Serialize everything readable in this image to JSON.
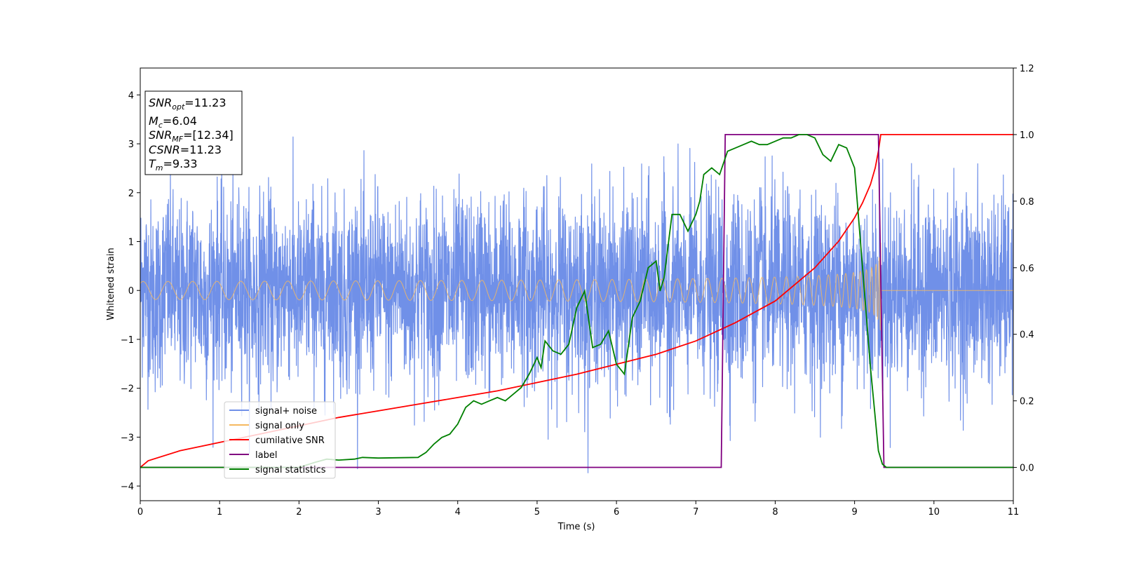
{
  "chart_data": {
    "type": "line",
    "xlabel": "Time (s)",
    "ylabel": "Whitened strain",
    "xlim": [
      0,
      11
    ],
    "ylim_left": [
      -4.3,
      4.55
    ],
    "ylim_right": [
      -0.1,
      1.2
    ],
    "x_ticks": [
      0,
      1,
      2,
      3,
      4,
      5,
      6,
      7,
      8,
      9,
      10,
      11
    ],
    "y_ticks_left": [
      -4,
      -3,
      -2,
      -1,
      0,
      1,
      2,
      3,
      4
    ],
    "y_ticks_right": [
      0.0,
      0.2,
      0.4,
      0.6,
      0.8,
      1.0,
      1.2
    ],
    "grid": false,
    "legend_position": "lower-left",
    "info_box": {
      "snr_opt": {
        "main": "SNR",
        "sub": "opt",
        "value": "=11.23"
      },
      "mc": {
        "main": "M",
        "sub": "c",
        "value": "=6.04"
      },
      "snr_mf": {
        "main": "SNR",
        "sub": "MF",
        "value": "=[12.34]"
      },
      "csnr": {
        "main": "CSNR",
        "value": "=11.23"
      },
      "tm": {
        "main": "T",
        "sub": "m",
        "value": "=9.33"
      }
    },
    "series": [
      {
        "name": "signal+ noise",
        "color": "#7090e8",
        "axis": "left",
        "kind": "noise",
        "std_dev": 0.95,
        "range": [
          -3.85,
          3.65
        ]
      },
      {
        "name": "signal only",
        "color": "#f5b860",
        "axis": "left",
        "kind": "chirp",
        "merger_time": 9.33,
        "peak_amplitude": 1.0
      },
      {
        "name": "cumilative SNR",
        "color": "#ff0000",
        "axis": "right",
        "x": [
          0,
          0.1,
          0.5,
          1,
          1.5,
          2,
          2.5,
          3,
          3.5,
          4,
          4.5,
          5,
          5.5,
          6,
          6.5,
          7,
          7.5,
          8,
          8.5,
          8.8,
          9,
          9.1,
          9.2,
          9.26,
          9.3,
          9.33,
          11
        ],
        "y": [
          0.0,
          0.02,
          0.05,
          0.075,
          0.1,
          0.125,
          0.15,
          0.17,
          0.19,
          0.21,
          0.23,
          0.255,
          0.28,
          0.31,
          0.34,
          0.38,
          0.435,
          0.5,
          0.6,
          0.68,
          0.75,
          0.795,
          0.85,
          0.9,
          0.95,
          1.0,
          1.0
        ]
      },
      {
        "name": "label",
        "color": "#800080",
        "axis": "right",
        "x": [
          0,
          7.32,
          7.37,
          9.3,
          9.37,
          11
        ],
        "y": [
          0,
          0,
          1,
          1,
          0,
          0
        ]
      },
      {
        "name": "signal statistics",
        "color": "#008000",
        "axis": "right",
        "x": [
          0,
          2.0,
          2.2,
          2.35,
          2.5,
          2.7,
          2.8,
          3.0,
          3.5,
          3.6,
          3.7,
          3.8,
          3.9,
          4.0,
          4.1,
          4.2,
          4.3,
          4.4,
          4.5,
          4.6,
          4.7,
          4.8,
          4.9,
          5.0,
          5.05,
          5.1,
          5.2,
          5.3,
          5.4,
          5.5,
          5.6,
          5.7,
          5.8,
          5.9,
          6.0,
          6.1,
          6.2,
          6.3,
          6.4,
          6.5,
          6.55,
          6.6,
          6.7,
          6.8,
          6.9,
          7.0,
          7.05,
          7.1,
          7.2,
          7.3,
          7.4,
          7.5,
          7.6,
          7.7,
          7.8,
          7.9,
          8.0,
          8.1,
          8.2,
          8.3,
          8.4,
          8.5,
          8.6,
          8.7,
          8.8,
          8.9,
          9.0,
          9.1,
          9.2,
          9.3,
          9.35,
          9.4,
          11
        ],
        "y": [
          0.0,
          0.0,
          0.015,
          0.025,
          0.022,
          0.025,
          0.03,
          0.028,
          0.03,
          0.045,
          0.07,
          0.09,
          0.1,
          0.13,
          0.18,
          0.2,
          0.19,
          0.2,
          0.21,
          0.2,
          0.22,
          0.24,
          0.28,
          0.33,
          0.3,
          0.38,
          0.35,
          0.34,
          0.37,
          0.48,
          0.53,
          0.36,
          0.37,
          0.41,
          0.31,
          0.28,
          0.45,
          0.5,
          0.6,
          0.62,
          0.53,
          0.57,
          0.76,
          0.76,
          0.71,
          0.76,
          0.8,
          0.88,
          0.9,
          0.88,
          0.95,
          0.96,
          0.97,
          0.98,
          0.97,
          0.97,
          0.98,
          0.99,
          0.99,
          1.0,
          1.0,
          0.99,
          0.94,
          0.92,
          0.97,
          0.96,
          0.9,
          0.6,
          0.3,
          0.05,
          0.01,
          0.0,
          0.0
        ]
      }
    ]
  }
}
